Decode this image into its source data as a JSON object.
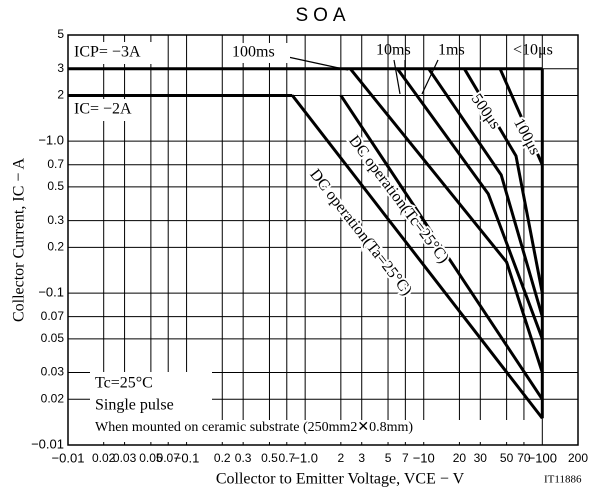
{
  "chart_data": {
    "type": "line",
    "title": "SOA",
    "xlabel": "Collector to Emitter Voltage, VCE − V",
    "ylabel": "Collector Current, IC − A",
    "code": "IT11886",
    "log_x": true,
    "log_y": true,
    "grid": true,
    "xlim": [
      0.01,
      200
    ],
    "ylim": [
      0.01,
      5
    ],
    "xticks": [
      {
        "value": 0.01,
        "label": "−0.01"
      },
      0.02,
      0.03,
      0.05,
      0.07,
      {
        "value": 0.1,
        "label": "−0.1"
      },
      0.2,
      0.3,
      0.5,
      0.7,
      {
        "value": 1,
        "label": "−1.0"
      },
      2,
      3,
      5,
      7,
      {
        "value": 10,
        "label": "−10"
      },
      20,
      30,
      50,
      70,
      {
        "value": 100,
        "label": "−100"
      },
      200
    ],
    "yticks": [
      {
        "value": 0.01,
        "label": "−0.01"
      },
      0.02,
      0.03,
      0.05,
      0.07,
      {
        "value": 0.1,
        "label": "−0.1"
      },
      0.2,
      0.3,
      0.5,
      0.7,
      {
        "value": 1,
        "label": "−1.0"
      },
      2,
      3,
      5
    ],
    "series": [
      {
        "name": "ICP= −3A",
        "color": "#000000",
        "x": [
          0.01,
          100
        ],
        "values": [
          3,
          3
        ]
      },
      {
        "name": "IC= −2A",
        "color": "#000000",
        "x": [
          0.01,
          0.78
        ],
        "values": [
          2,
          2
        ]
      },
      {
        "name": "100ms",
        "color": "#000000",
        "x": [
          2.4,
          50,
          100
        ],
        "values": [
          3,
          0.16,
          0.03
        ]
      },
      {
        "name": "10ms",
        "color": "#000000",
        "x": [
          6,
          35,
          100
        ],
        "values": [
          3,
          0.45,
          0.05
        ]
      },
      {
        "name": "1ms",
        "color": "#000000",
        "x": [
          11,
          45,
          100
        ],
        "values": [
          3,
          0.6,
          0.07
        ]
      },
      {
        "name": "500μs",
        "color": "#000000",
        "x": [
          22,
          60,
          100
        ],
        "values": [
          3,
          0.8,
          0.1
        ]
      },
      {
        "name": "100μs",
        "color": "#000000",
        "x": [
          44,
          100
        ],
        "values": [
          3,
          0.7
        ]
      },
      {
        "name": "<10μs",
        "color": "#000000",
        "x": [
          100,
          100
        ],
        "values": [
          3,
          0.015
        ]
      },
      {
        "name": "DC operation(Tc=25°C)",
        "color": "#000000",
        "x": [
          2,
          100
        ],
        "values": [
          2,
          0.02
        ]
      },
      {
        "name": "DC operation(Ta=25°C)",
        "color": "#000000",
        "x": [
          0.78,
          100
        ],
        "values": [
          2,
          0.015
        ]
      }
    ],
    "notes": [
      "Tc=25°C",
      "Single pulse",
      "When mounted on ceramic substrate (250mm2✕0.8mm)"
    ]
  }
}
